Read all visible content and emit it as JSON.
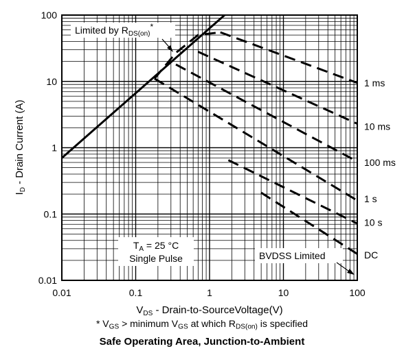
{
  "chart_data": {
    "type": "line",
    "title": "Safe Operating Area, Junction-to-Ambient",
    "footnote": {
      "prefix": "* V",
      "sub1": "GS",
      "mid1": " > minimum V",
      "sub2": "GS",
      "mid2": " at which R",
      "sub3": "DS(on)",
      "suffix": " is specified"
    },
    "xlabel": {
      "main": "V",
      "sub": "DS",
      "rest": " - Drain-to-SourceVoltage(V)"
    },
    "ylabel": {
      "main": "I",
      "sub": "D",
      "rest": " - Drain Current (A)"
    },
    "x_scale": "log",
    "y_scale": "log",
    "xlim": [
      0.01,
      100
    ],
    "ylim": [
      0.01,
      100
    ],
    "x_ticks": [
      "0.01",
      "0.1",
      "1",
      "10",
      "100"
    ],
    "y_ticks": [
      "100",
      "10",
      "1",
      "0.1",
      "0.01"
    ],
    "grid": true,
    "series": [
      {
        "name": "Limited by RDS(on)*",
        "style": "solid",
        "x": [
          0.01,
          1.6
        ],
        "y": [
          0.7,
          100
        ]
      },
      {
        "name": "1 ms",
        "style": "dashed",
        "x": [
          0.18,
          0.35,
          0.7,
          1.4
        ],
        "y": [
          11,
          27,
          50,
          55
        ]
      },
      {
        "name": "1 ms",
        "style": "dashed",
        "x": [
          1.4,
          100
        ],
        "y": [
          55,
          9.5
        ]
      },
      {
        "name": "10 ms",
        "style": "dashed",
        "x": [
          0.7,
          100
        ],
        "y": [
          28,
          2.3
        ]
      },
      {
        "name": "100 ms",
        "style": "dashed",
        "x": [
          0.35,
          100
        ],
        "y": [
          18,
          0.62
        ]
      },
      {
        "name": "1 s",
        "style": "dashed",
        "x": [
          0.18,
          100
        ],
        "y": [
          11,
          0.16
        ]
      },
      {
        "name": "10 s",
        "style": "dashed",
        "x": [
          1.8,
          100
        ],
        "y": [
          0.65,
          0.072
        ]
      },
      {
        "name": "DC",
        "style": "dashed",
        "x": [
          5.0,
          100
        ],
        "y": [
          0.21,
          0.025
        ]
      }
    ],
    "curve_labels": [
      {
        "text": "1 ms",
        "x": 100,
        "y": 9.5
      },
      {
        "text": "10 ms",
        "x": 100,
        "y": 2.1
      },
      {
        "text": "100 ms",
        "x": 100,
        "y": 0.6
      },
      {
        "text": "1 s",
        "x": 100,
        "y": 0.17
      },
      {
        "text": "10 s",
        "x": 100,
        "y": 0.075
      },
      {
        "text": "DC",
        "x": 100,
        "y": 0.024
      }
    ],
    "annotations": {
      "rdson": {
        "text": "Limited by R",
        "sub": "DS(on)",
        "suffix": "*"
      },
      "ta": {
        "line1_main": "T",
        "line1_sub": "A",
        "line1_rest": " = 25 °C",
        "line2": "Single Pulse"
      },
      "bvdss": {
        "text": "BVDSS Limited"
      }
    }
  }
}
